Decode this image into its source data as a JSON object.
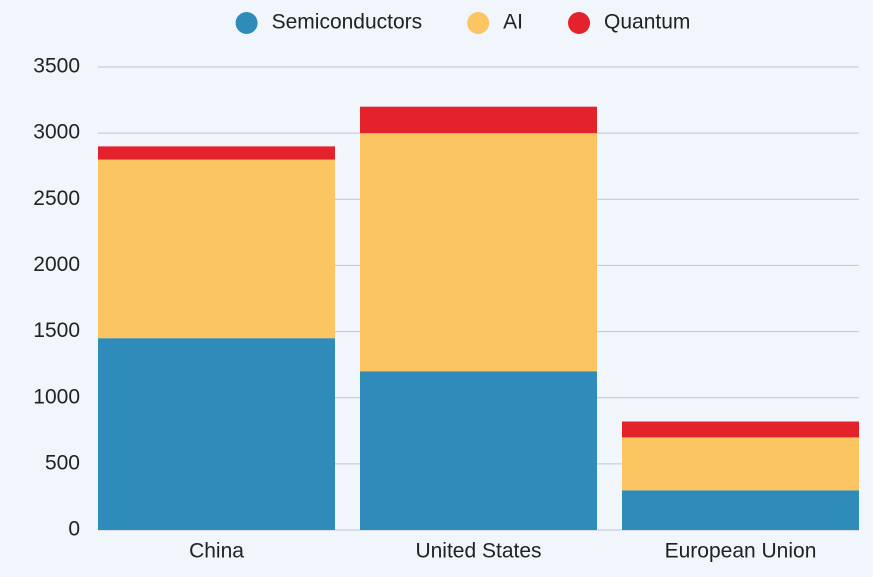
{
  "chart_data": {
    "type": "stacked_bar",
    "categories": [
      "China",
      "United States",
      "European Union"
    ],
    "series": [
      {
        "name": "Semiconductors",
        "color": "#2e8bba",
        "values": [
          1450,
          1200,
          300
        ]
      },
      {
        "name": "AI",
        "color": "#fbc562",
        "values": [
          1350,
          1800,
          400
        ]
      },
      {
        "name": "Quantum",
        "color": "#e3222b",
        "values": [
          100,
          200,
          120
        ]
      }
    ],
    "ylim": [
      0,
      3500
    ],
    "yticks": [
      0,
      500,
      1000,
      1500,
      2000,
      2500,
      3000,
      3500
    ],
    "grid": true,
    "legend": "top"
  }
}
